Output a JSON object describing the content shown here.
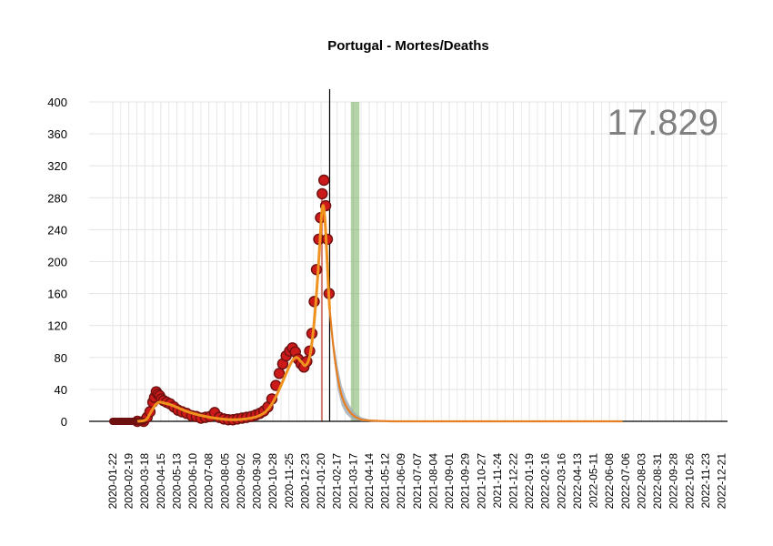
{
  "chart_data": {
    "type": "scatter",
    "title": "Portugal - Mortes/Deaths",
    "xlabel": "",
    "ylabel": "",
    "total_label": "17.829",
    "ylim": [
      0,
      400
    ],
    "y_ticks": [
      0,
      40,
      80,
      120,
      160,
      200,
      240,
      280,
      320,
      360,
      400
    ],
    "x_tick_labels": [
      "2020-01-22",
      "2020-02-19",
      "2020-03-18",
      "2020-04-15",
      "2020-05-13",
      "2020-06-10",
      "2020-07-08",
      "2020-08-05",
      "2020-09-02",
      "2020-09-30",
      "2020-10-28",
      "2020-11-25",
      "2020-12-23",
      "2021-01-20",
      "2021-02-17",
      "2021-03-17",
      "2021-04-14",
      "2021-05-12",
      "2021-06-09",
      "2021-07-07",
      "2021-08-04",
      "2021-09-01",
      "2021-09-29",
      "2021-10-27",
      "2021-11-24",
      "2021-12-22",
      "2022-01-19",
      "2022-02-16",
      "2022-03-16",
      "2022-04-13",
      "2022-05-11",
      "2022-06-08",
      "2022-07-06",
      "2022-08-03",
      "2022-08-31",
      "2022-09-28",
      "2022-10-26",
      "2022-11-23",
      "2022-12-21"
    ],
    "current_date_line": "2021-02-04",
    "red_band": [
      "2021-01-20",
      "2021-01-23"
    ],
    "green_band": [
      "2021-03-13",
      "2021-03-28"
    ],
    "grid": true,
    "colors": {
      "points_fill": "#cc1a1a",
      "points_stroke": "#6e1010",
      "smooth_line": "#f0921e",
      "forecast_line": "#e67e22",
      "forecast_band": "#9eaab7",
      "red_band": "#c0392b",
      "green_band": "#6aa84f",
      "grid": "#e6e6e6"
    },
    "series": [
      {
        "kind": "observed",
        "x": [
          "2020-03-05",
          "2020-03-16",
          "2020-03-22",
          "2020-03-27",
          "2020-04-01",
          "2020-04-04",
          "2020-04-07",
          "2020-04-10",
          "2020-04-13",
          "2020-04-16",
          "2020-04-20",
          "2020-04-25",
          "2020-05-01",
          "2020-05-08",
          "2020-05-15",
          "2020-05-22",
          "2020-05-30",
          "2020-06-08",
          "2020-06-16",
          "2020-06-24",
          "2020-07-02",
          "2020-07-10",
          "2020-07-18",
          "2020-07-26",
          "2020-08-03",
          "2020-08-11",
          "2020-08-19",
          "2020-08-27",
          "2020-09-04",
          "2020-09-12",
          "2020-09-20",
          "2020-09-28",
          "2020-10-05",
          "2020-10-12",
          "2020-10-19",
          "2020-10-26",
          "2020-11-02",
          "2020-11-08",
          "2020-11-14",
          "2020-11-20",
          "2020-11-26",
          "2020-12-01",
          "2020-12-06",
          "2020-12-11",
          "2020-12-16",
          "2020-12-21",
          "2020-12-26",
          "2020-12-31",
          "2021-01-04",
          "2021-01-08",
          "2021-01-12",
          "2021-01-16",
          "2021-01-19",
          "2021-01-22",
          "2021-01-25",
          "2021-01-28",
          "2021-01-31",
          "2021-02-03"
        ],
        "y": [
          0,
          0,
          5,
          12,
          24,
          30,
          37,
          34,
          32,
          28,
          26,
          24,
          22,
          18,
          14,
          12,
          10,
          7,
          6,
          4,
          5,
          6,
          11,
          5,
          3,
          2,
          2,
          3,
          4,
          5,
          6,
          8,
          10,
          13,
          18,
          28,
          45,
          60,
          72,
          82,
          88,
          92,
          87,
          78,
          72,
          68,
          75,
          88,
          110,
          150,
          190,
          228,
          255,
          285,
          302,
          270,
          228,
          160
        ]
      },
      {
        "kind": "smoothed",
        "x": [
          "2020-03-05",
          "2020-03-20",
          "2020-03-29",
          "2020-04-05",
          "2020-04-12",
          "2020-04-20",
          "2020-05-01",
          "2020-05-15",
          "2020-06-01",
          "2020-06-20",
          "2020-07-10",
          "2020-07-30",
          "2020-08-20",
          "2020-09-10",
          "2020-09-30",
          "2020-10-15",
          "2020-10-28",
          "2020-11-08",
          "2020-11-20",
          "2020-11-30",
          "2020-12-08",
          "2020-12-16",
          "2020-12-24",
          "2021-01-01",
          "2021-01-08",
          "2021-01-14",
          "2021-01-18",
          "2021-01-21",
          "2021-01-24",
          "2021-01-27",
          "2021-01-30",
          "2021-02-02",
          "2021-02-04"
        ],
        "y": [
          0,
          2,
          12,
          20,
          24,
          23,
          21,
          17,
          12,
          8,
          5,
          3,
          2,
          3,
          6,
          12,
          24,
          40,
          60,
          75,
          80,
          75,
          70,
          84,
          125,
          180,
          225,
          260,
          270,
          250,
          210,
          165,
          140
        ]
      },
      {
        "kind": "forecast",
        "x": [
          "2021-02-04",
          "2021-02-11",
          "2021-02-18",
          "2021-02-25",
          "2021-03-04",
          "2021-03-11",
          "2021-03-18",
          "2021-03-25",
          "2021-04-01",
          "2021-04-15",
          "2021-05-01",
          "2021-05-15",
          "2021-06-01",
          "2021-07-01",
          "2022-07-01"
        ],
        "y": [
          140,
          90,
          55,
          32,
          20,
          12,
          7,
          4,
          2,
          1,
          0.5,
          0.2,
          0,
          0,
          0
        ],
        "lower": [
          140,
          80,
          40,
          20,
          10,
          5,
          2,
          1,
          0,
          0,
          0,
          0,
          0,
          0,
          0
        ],
        "upper": [
          140,
          100,
          70,
          45,
          30,
          20,
          12,
          8,
          5,
          2,
          1,
          0.5,
          0,
          0,
          0
        ]
      }
    ]
  }
}
